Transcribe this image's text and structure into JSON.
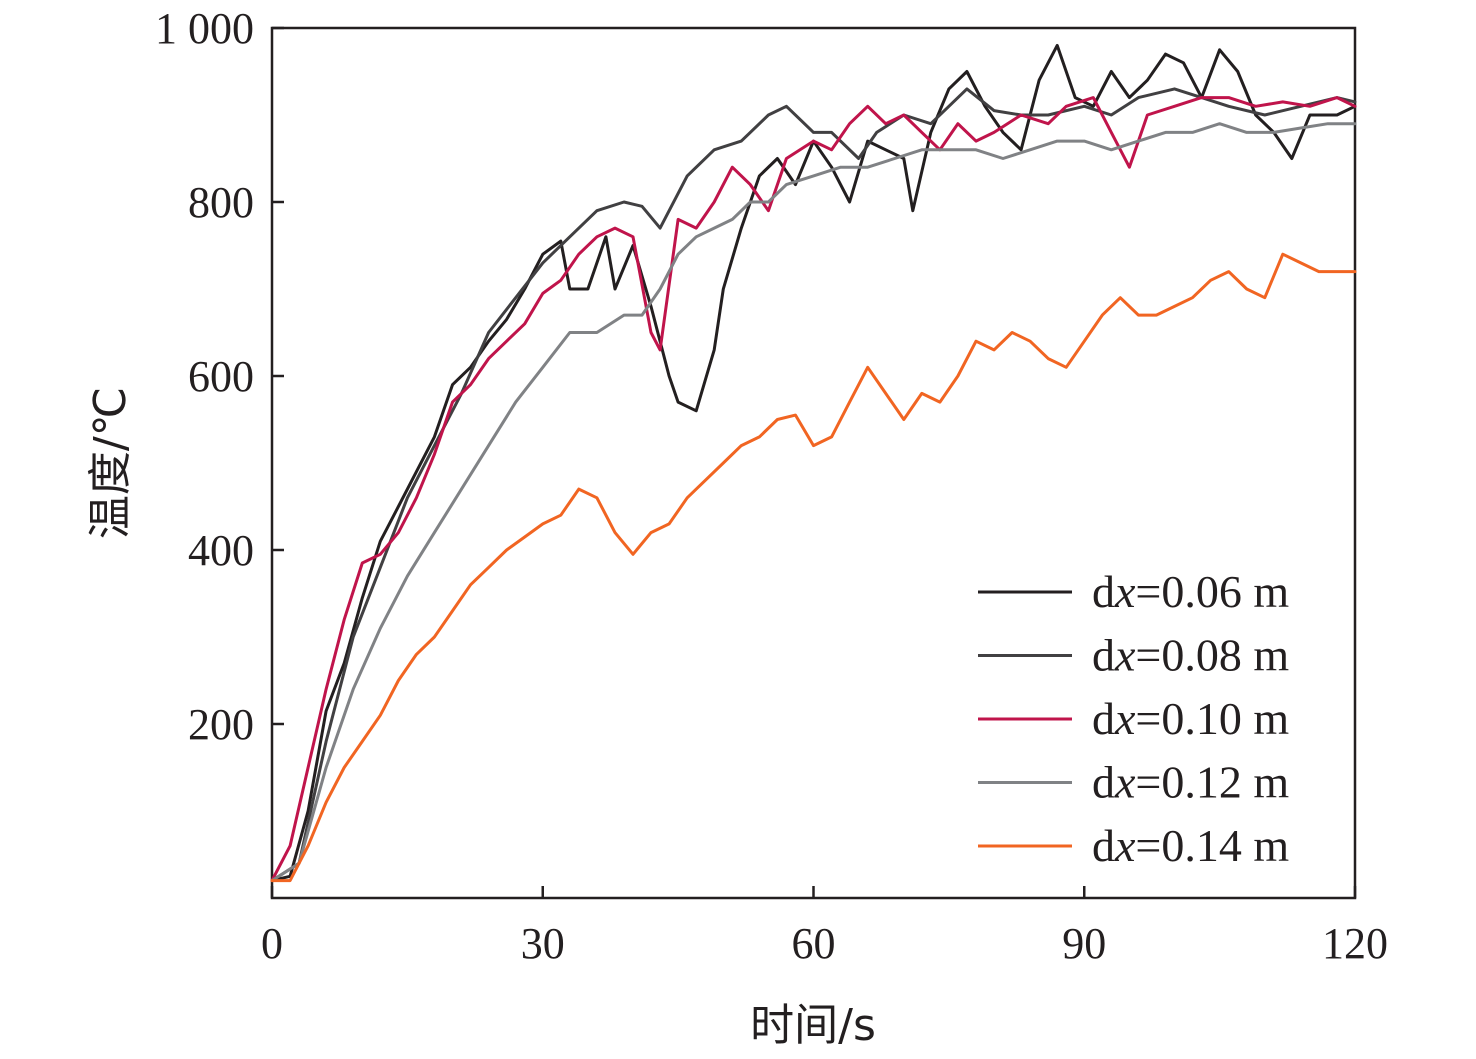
{
  "chart_data": {
    "type": "line",
    "xlabel": "时间/s",
    "ylabel": "温度/℃",
    "xlim": [
      0,
      120
    ],
    "ylim": [
      0,
      1000
    ],
    "x_ticks": [
      0,
      30,
      60,
      90,
      120
    ],
    "x_tick_labels": [
      "0",
      "30",
      "60",
      "90",
      "120"
    ],
    "y_ticks": [
      200,
      400,
      600,
      800,
      1000
    ],
    "y_tick_labels": [
      "200",
      "400",
      "600",
      "800",
      "1 000"
    ],
    "grid": false,
    "legend_position": "bottom-right",
    "series": [
      {
        "name": "dx=0.06 m",
        "name_prefix": "d",
        "name_italic": "x",
        "name_suffix": "=0.06 m",
        "color": "#231f20",
        "points": [
          [
            0,
            20
          ],
          [
            2,
            25
          ],
          [
            4,
            100
          ],
          [
            6,
            215
          ],
          [
            8,
            270
          ],
          [
            10,
            345
          ],
          [
            12,
            410
          ],
          [
            14,
            450
          ],
          [
            16,
            490
          ],
          [
            18,
            530
          ],
          [
            20,
            590
          ],
          [
            22,
            610
          ],
          [
            24,
            640
          ],
          [
            26,
            665
          ],
          [
            28,
            700
          ],
          [
            30,
            740
          ],
          [
            32,
            755
          ],
          [
            33,
            700
          ],
          [
            35,
            700
          ],
          [
            37,
            760
          ],
          [
            38,
            700
          ],
          [
            40,
            750
          ],
          [
            42,
            680
          ],
          [
            44,
            600
          ],
          [
            45,
            570
          ],
          [
            47,
            560
          ],
          [
            49,
            630
          ],
          [
            50,
            700
          ],
          [
            52,
            770
          ],
          [
            54,
            830
          ],
          [
            56,
            850
          ],
          [
            58,
            820
          ],
          [
            60,
            870
          ],
          [
            62,
            840
          ],
          [
            64,
            800
          ],
          [
            66,
            870
          ],
          [
            68,
            860
          ],
          [
            70,
            850
          ],
          [
            71,
            790
          ],
          [
            73,
            880
          ],
          [
            75,
            930
          ],
          [
            77,
            950
          ],
          [
            79,
            910
          ],
          [
            81,
            880
          ],
          [
            83,
            860
          ],
          [
            85,
            940
          ],
          [
            87,
            980
          ],
          [
            89,
            920
          ],
          [
            91,
            910
          ],
          [
            93,
            950
          ],
          [
            95,
            920
          ],
          [
            97,
            940
          ],
          [
            99,
            970
          ],
          [
            101,
            960
          ],
          [
            103,
            920
          ],
          [
            105,
            975
          ],
          [
            107,
            950
          ],
          [
            109,
            900
          ],
          [
            111,
            880
          ],
          [
            113,
            850
          ],
          [
            115,
            900
          ],
          [
            118,
            900
          ],
          [
            120,
            910
          ]
        ]
      },
      {
        "name": "dx=0.08 m",
        "name_prefix": "d",
        "name_italic": "x",
        "name_suffix": "=0.08 m",
        "color": "#414042",
        "points": [
          [
            0,
            20
          ],
          [
            3,
            40
          ],
          [
            6,
            180
          ],
          [
            9,
            300
          ],
          [
            12,
            380
          ],
          [
            15,
            460
          ],
          [
            18,
            520
          ],
          [
            21,
            580
          ],
          [
            24,
            650
          ],
          [
            27,
            690
          ],
          [
            30,
            730
          ],
          [
            33,
            760
          ],
          [
            36,
            790
          ],
          [
            39,
            800
          ],
          [
            41,
            795
          ],
          [
            43,
            770
          ],
          [
            46,
            830
          ],
          [
            49,
            860
          ],
          [
            52,
            870
          ],
          [
            55,
            900
          ],
          [
            57,
            910
          ],
          [
            60,
            880
          ],
          [
            62,
            880
          ],
          [
            65,
            850
          ],
          [
            67,
            880
          ],
          [
            70,
            900
          ],
          [
            73,
            890
          ],
          [
            75,
            910
          ],
          [
            77,
            930
          ],
          [
            80,
            905
          ],
          [
            83,
            900
          ],
          [
            86,
            900
          ],
          [
            90,
            910
          ],
          [
            93,
            900
          ],
          [
            96,
            920
          ],
          [
            100,
            930
          ],
          [
            103,
            920
          ],
          [
            106,
            910
          ],
          [
            110,
            900
          ],
          [
            114,
            910
          ],
          [
            118,
            920
          ],
          [
            120,
            915
          ]
        ]
      },
      {
        "name": "dx=0.10 m",
        "name_prefix": "d",
        "name_italic": "x",
        "name_suffix": "=0.10 m",
        "color": "#c0144b",
        "points": [
          [
            0,
            20
          ],
          [
            2,
            60
          ],
          [
            4,
            150
          ],
          [
            6,
            240
          ],
          [
            8,
            320
          ],
          [
            10,
            385
          ],
          [
            12,
            395
          ],
          [
            14,
            420
          ],
          [
            16,
            460
          ],
          [
            18,
            510
          ],
          [
            20,
            570
          ],
          [
            22,
            590
          ],
          [
            24,
            620
          ],
          [
            26,
            640
          ],
          [
            28,
            660
          ],
          [
            30,
            695
          ],
          [
            32,
            710
          ],
          [
            34,
            740
          ],
          [
            36,
            760
          ],
          [
            38,
            770
          ],
          [
            40,
            760
          ],
          [
            42,
            650
          ],
          [
            43,
            630
          ],
          [
            45,
            780
          ],
          [
            47,
            770
          ],
          [
            49,
            800
          ],
          [
            51,
            840
          ],
          [
            53,
            820
          ],
          [
            55,
            790
          ],
          [
            57,
            850
          ],
          [
            60,
            870
          ],
          [
            62,
            860
          ],
          [
            64,
            890
          ],
          [
            66,
            910
          ],
          [
            68,
            890
          ],
          [
            70,
            900
          ],
          [
            72,
            880
          ],
          [
            74,
            860
          ],
          [
            76,
            890
          ],
          [
            78,
            870
          ],
          [
            80,
            880
          ],
          [
            83,
            900
          ],
          [
            86,
            890
          ],
          [
            88,
            910
          ],
          [
            91,
            920
          ],
          [
            93,
            880
          ],
          [
            95,
            840
          ],
          [
            97,
            900
          ],
          [
            100,
            910
          ],
          [
            103,
            920
          ],
          [
            106,
            920
          ],
          [
            109,
            910
          ],
          [
            112,
            915
          ],
          [
            115,
            910
          ],
          [
            118,
            920
          ],
          [
            120,
            910
          ]
        ]
      },
      {
        "name": "dx=0.12 m",
        "name_prefix": "d",
        "name_italic": "x",
        "name_suffix": "=0.12 m",
        "color": "#808285",
        "points": [
          [
            0,
            20
          ],
          [
            3,
            40
          ],
          [
            6,
            150
          ],
          [
            9,
            240
          ],
          [
            12,
            310
          ],
          [
            15,
            370
          ],
          [
            18,
            420
          ],
          [
            21,
            470
          ],
          [
            24,
            520
          ],
          [
            27,
            570
          ],
          [
            30,
            610
          ],
          [
            33,
            650
          ],
          [
            36,
            650
          ],
          [
            39,
            670
          ],
          [
            41,
            670
          ],
          [
            43,
            700
          ],
          [
            45,
            740
          ],
          [
            47,
            760
          ],
          [
            49,
            770
          ],
          [
            51,
            780
          ],
          [
            53,
            800
          ],
          [
            55,
            800
          ],
          [
            57,
            820
          ],
          [
            60,
            830
          ],
          [
            63,
            840
          ],
          [
            66,
            840
          ],
          [
            69,
            850
          ],
          [
            72,
            860
          ],
          [
            75,
            860
          ],
          [
            78,
            860
          ],
          [
            81,
            850
          ],
          [
            84,
            860
          ],
          [
            87,
            870
          ],
          [
            90,
            870
          ],
          [
            93,
            860
          ],
          [
            96,
            870
          ],
          [
            99,
            880
          ],
          [
            102,
            880
          ],
          [
            105,
            890
          ],
          [
            108,
            880
          ],
          [
            111,
            880
          ],
          [
            114,
            885
          ],
          [
            117,
            890
          ],
          [
            120,
            890
          ]
        ]
      },
      {
        "name": "dx=0.14 m",
        "name_prefix": "d",
        "name_italic": "x",
        "name_suffix": "=0.14 m",
        "color": "#f16522",
        "points": [
          [
            0,
            20
          ],
          [
            2,
            20
          ],
          [
            4,
            60
          ],
          [
            6,
            110
          ],
          [
            8,
            150
          ],
          [
            10,
            180
          ],
          [
            12,
            210
          ],
          [
            14,
            250
          ],
          [
            16,
            280
          ],
          [
            18,
            300
          ],
          [
            20,
            330
          ],
          [
            22,
            360
          ],
          [
            24,
            380
          ],
          [
            26,
            400
          ],
          [
            28,
            415
          ],
          [
            30,
            430
          ],
          [
            32,
            440
          ],
          [
            34,
            470
          ],
          [
            36,
            460
          ],
          [
            38,
            420
          ],
          [
            40,
            395
          ],
          [
            42,
            420
          ],
          [
            44,
            430
          ],
          [
            46,
            460
          ],
          [
            48,
            480
          ],
          [
            50,
            500
          ],
          [
            52,
            520
          ],
          [
            54,
            530
          ],
          [
            56,
            550
          ],
          [
            58,
            555
          ],
          [
            60,
            520
          ],
          [
            62,
            530
          ],
          [
            64,
            570
          ],
          [
            66,
            610
          ],
          [
            68,
            580
          ],
          [
            70,
            550
          ],
          [
            72,
            580
          ],
          [
            74,
            570
          ],
          [
            76,
            600
          ],
          [
            78,
            640
          ],
          [
            80,
            630
          ],
          [
            82,
            650
          ],
          [
            84,
            640
          ],
          [
            86,
            620
          ],
          [
            88,
            610
          ],
          [
            90,
            640
          ],
          [
            92,
            670
          ],
          [
            94,
            690
          ],
          [
            96,
            670
          ],
          [
            98,
            670
          ],
          [
            100,
            680
          ],
          [
            102,
            690
          ],
          [
            104,
            710
          ],
          [
            106,
            720
          ],
          [
            108,
            700
          ],
          [
            110,
            690
          ],
          [
            112,
            740
          ],
          [
            114,
            730
          ],
          [
            116,
            720
          ],
          [
            118,
            720
          ],
          [
            120,
            720
          ]
        ]
      }
    ]
  }
}
